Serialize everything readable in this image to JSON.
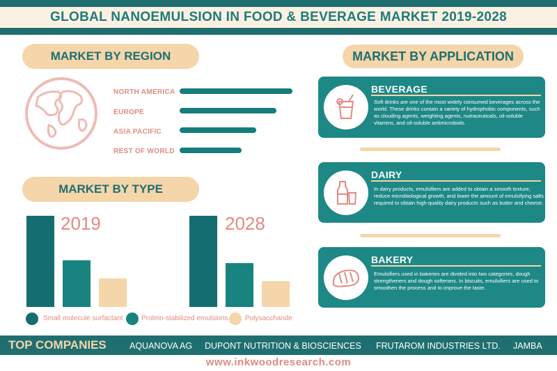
{
  "header": {
    "title": "GLOBAL NANOEMULSION IN FOOD & BEVERAGE MARKET 2019-2028"
  },
  "region_section": {
    "title": "MARKET BY REGION",
    "icon": "globe-icon",
    "regions": [
      {
        "label": "NORTH AMERICA",
        "share": 1.0
      },
      {
        "label": "EUROPE",
        "share": 0.86
      },
      {
        "label": "ASIA PACIFIC",
        "share": 0.68
      },
      {
        "label": "REST OF WORLD",
        "share": 0.55
      }
    ]
  },
  "type_section": {
    "title": "MARKET BY TYPE",
    "years": [
      "2019",
      "2028"
    ],
    "bar_heights_relative": [
      [
        1.0,
        0.51,
        0.31
      ],
      [
        1.0,
        0.48,
        0.28
      ]
    ],
    "legend": [
      {
        "label": "Small molecule surfactant",
        "color": "#146e70"
      },
      {
        "label": "Protein-stabilized emulsions",
        "color": "#18837f"
      },
      {
        "label": "Polysaccharide",
        "color": "#f5d5aa"
      }
    ]
  },
  "application_section": {
    "title": "MARKET BY APPLICATION",
    "items": [
      {
        "title": "BEVERAGE",
        "icon": "drink-glass-icon",
        "text": "Soft drinks are one of the most widely consumed beverages across the world. These drinks contain a variety of hydrophobic components, such as clouding agents, weighting agents, nutraceuticals, oil-soluble vitamins, and oil-soluble antimicrobials."
      },
      {
        "title": "DAIRY",
        "icon": "milk-bottle-icon",
        "text": "In dairy products, emulsifiers are added to obtain a smooth texture, reduce microbiological growth, and lower the amount of emulsifying salts required to obtain high-quality dairy products such as butter and cheese."
      },
      {
        "title": "BAKERY",
        "icon": "bread-icon",
        "text": "Emulsifiers used in bakeries are divided into two categories, dough strengtheners and dough softeners. In biscuits, emulsifiers are used to smoothen the process and to improve the taste."
      }
    ]
  },
  "companies": {
    "label": "TOP COMPANIES",
    "names": [
      "AQUANOVA AG",
      "DUPONT NUTRITION & BIOSCIENCES",
      "FRUTAROM INDUSTRIES LTD.",
      "JAMBA"
    ]
  },
  "footer": {
    "website": "www.inkwoodresearch.com"
  },
  "colors": {
    "teal_dark": "#1f6f70",
    "teal": "#1d8885",
    "peach": "#f5d5aa",
    "salmon": "#e38a82"
  }
}
